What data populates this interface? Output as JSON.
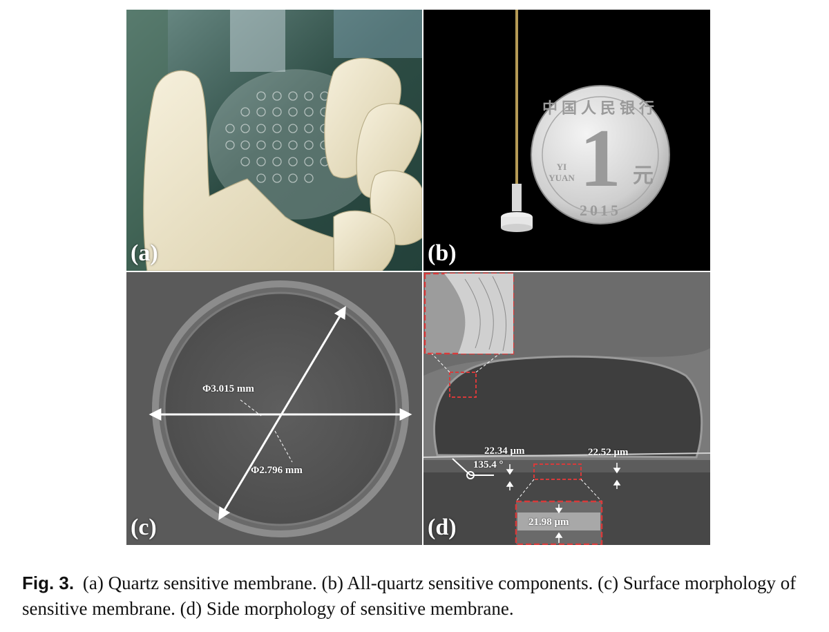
{
  "figure": {
    "panels": {
      "a": {
        "label": "(a)"
      },
      "b": {
        "label": "(b)",
        "coin": {
          "denomination": "1",
          "yuan_latin_top": "YI",
          "yuan_latin_bottom": "YUAN",
          "yuan_hanzi": "元",
          "year": "2015",
          "rim_text": "中国人民银行"
        }
      },
      "c": {
        "label": "(c)",
        "outer_diameter": "Φ3.015 mm",
        "inner_diameter": "Φ2.796 mm"
      },
      "d": {
        "label": "(d)",
        "thickness_left": "22.34 μm",
        "thickness_right": "22.52 μm",
        "thickness_center": "21.98 μm",
        "sidewall_angle": "135.4 °"
      }
    }
  },
  "caption": {
    "label": "Fig. 3.",
    "text": "(a) Quartz sensitive membrane. (b) All-quartz sensitive components. (c) Surface morphology of sensitive membrane. (d) Side morphology of sensitive membrane."
  },
  "colors": {
    "glove": "#efe7cc",
    "photo_background_a": "#3a5a52",
    "photo_background_b": "#000000",
    "sem_gray": "#5a5a5a",
    "highlight_red": "#d83a3a"
  }
}
